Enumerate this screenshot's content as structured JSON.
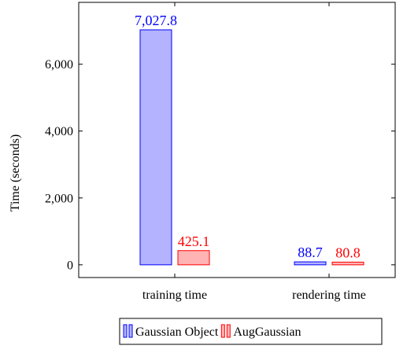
{
  "chart_data": {
    "type": "bar",
    "title": "",
    "xlabel": "",
    "ylabel": "Time (seconds)",
    "categories": [
      "training time",
      "rendering time"
    ],
    "ylim": [
      -380,
      7850
    ],
    "yticks": [
      0,
      2000,
      4000,
      6000
    ],
    "ytick_labels": [
      "0",
      "2,000",
      "4,000",
      "6,000"
    ],
    "grid": false,
    "legend_position": "bottom-center",
    "series": [
      {
        "name": "Gaussian Object",
        "values": [
          7027.8,
          88.7
        ],
        "labels": [
          "7,027.8",
          "88.7"
        ],
        "fill_color": "#b3b3ff",
        "stroke_color": "#0000ff",
        "label_color": "#0000ff"
      },
      {
        "name": "AugGaussian",
        "values": [
          425.1,
          80.8
        ],
        "labels": [
          "425.1",
          "80.8"
        ],
        "fill_color": "#ffb3b3",
        "stroke_color": "#ff0000",
        "label_color": "#ff0000"
      }
    ]
  }
}
